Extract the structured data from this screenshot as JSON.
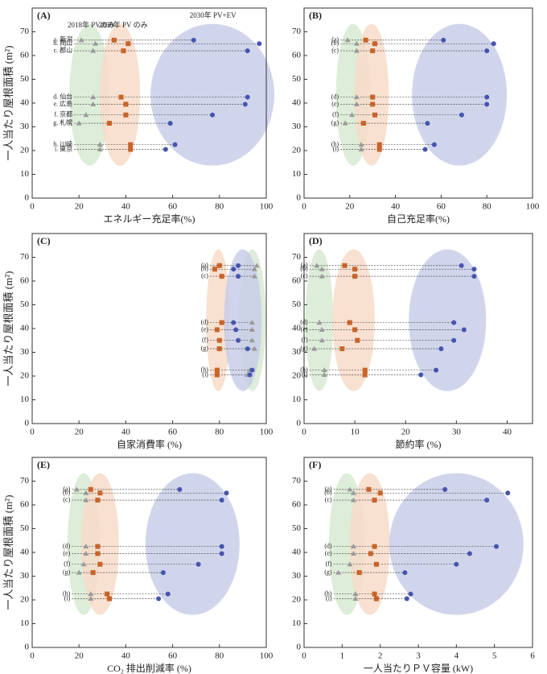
{
  "chart_data": [
    {
      "type": "scatter",
      "panel_label": "(A)",
      "xlabel": "エネルギー充足率(%)",
      "ylabel": "一人当たり屋根面積 (m²)",
      "labels": [
        "a. 新潟",
        "b. 岡山",
        "c. 郡山",
        "d. 仙台",
        "e. 広島",
        "f. 京都",
        "g. 札幌",
        "h. 川崎",
        "i. 東京"
      ],
      "y": [
        66.5,
        65,
        62,
        42.5,
        39.5,
        35,
        31.5,
        22.5,
        20.5
      ],
      "series": [
        {
          "name": "2018年 PVのみ",
          "color": "#9a9a9a",
          "region_color": "#d6e9cf",
          "marker": "triangle",
          "x": [
            21,
            27,
            26,
            26,
            26,
            23,
            20,
            29,
            29
          ]
        },
        {
          "name": "2030年 PV のみ",
          "color": "#c8642a",
          "region_color": "#f6d9c6",
          "marker": "square",
          "x": [
            35,
            41,
            39,
            38,
            40,
            40,
            33,
            42,
            42
          ]
        },
        {
          "name": "2030年 PV+EV",
          "color": "#4655ad",
          "region_color": "#c6cbe7",
          "marker": "circle",
          "x": [
            69,
            97,
            92,
            92,
            91,
            77,
            59,
            61,
            57
          ]
        }
      ],
      "xlim": [
        0,
        100
      ],
      "xticks": [
        0,
        20,
        40,
        60,
        80,
        100
      ],
      "ylim": [
        0,
        80
      ],
      "yticks": [
        0,
        10,
        20,
        30,
        40,
        50,
        60,
        70
      ]
    },
    {
      "type": "scatter",
      "panel_label": "(B)",
      "xlabel": "自己充足率(%)",
      "labels": [
        "(a)",
        "(b)",
        "(c)",
        "(d)",
        "(e)",
        "(f)",
        "(g)",
        "(h)",
        "(i)"
      ],
      "y": [
        66.5,
        65,
        62,
        42.5,
        39.5,
        35,
        31.5,
        22.5,
        20.5
      ],
      "series": [
        {
          "color": "#9a9a9a",
          "region_color": "#d6e9cf",
          "marker": "triangle",
          "x": [
            19,
            23,
            23,
            23,
            23,
            21,
            18,
            25,
            25
          ]
        },
        {
          "color": "#c8642a",
          "region_color": "#f6d9c6",
          "marker": "square",
          "x": [
            27,
            31,
            30,
            30,
            30,
            31,
            26,
            33,
            33
          ]
        },
        {
          "color": "#4655ad",
          "region_color": "#c6cbe7",
          "marker": "circle",
          "x": [
            61,
            83,
            80,
            80,
            80,
            69,
            54,
            57,
            53
          ]
        }
      ],
      "xlim": [
        0,
        100
      ],
      "xticks": [
        0,
        20,
        40,
        60,
        80,
        100
      ],
      "ylim": [
        0,
        80
      ],
      "yticks": [
        0,
        10,
        20,
        30,
        40,
        50,
        60,
        70
      ]
    },
    {
      "type": "scatter",
      "panel_label": "(C)",
      "xlabel": "自家消費率 (%)",
      "ylabel": "一人当たり屋根面積 (m²)",
      "labels": [
        "(a)",
        "(b)",
        "(c)",
        "(d)",
        "(e)",
        "(f)",
        "(g)",
        "(h)",
        "(i)"
      ],
      "y": [
        66.5,
        65,
        62,
        42.5,
        39.5,
        35,
        31.5,
        22.5,
        20.5
      ],
      "series": [
        {
          "color": "#9a9a9a",
          "region_color": "#d6e9cf",
          "marker": "triangle",
          "x": [
            96,
            95,
            95,
            94,
            94,
            94,
            95,
            93,
            92
          ]
        },
        {
          "color": "#c8642a",
          "region_color": "#f6d9c6",
          "marker": "square",
          "x": [
            80,
            78,
            81,
            81,
            79,
            80,
            80,
            79,
            79
          ]
        },
        {
          "color": "#4655ad",
          "region_color": "#c6cbe7",
          "marker": "circle",
          "x": [
            88,
            86,
            88,
            86,
            87,
            88,
            92,
            94,
            93
          ]
        }
      ],
      "xlim": [
        0,
        100
      ],
      "xticks": [
        0,
        20,
        40,
        60,
        80,
        100
      ],
      "ylim": [
        0,
        80
      ],
      "yticks": [
        0,
        10,
        20,
        30,
        40,
        50,
        60,
        70
      ]
    },
    {
      "type": "scatter",
      "panel_label": "(D)",
      "xlabel": "節約率 (%)",
      "labels": [
        "(a)",
        "(b)",
        "(c)",
        "(d)",
        "(e)",
        "(f)",
        "(g)",
        "(h)",
        "(i)"
      ],
      "y": [
        66.5,
        65,
        62,
        42.5,
        39.5,
        35,
        31.5,
        22.5,
        20.5
      ],
      "series": [
        {
          "color": "#9a9a9a",
          "region_color": "#d6e9cf",
          "marker": "triangle",
          "x": [
            2.5,
            3.5,
            3.5,
            3,
            3.5,
            3.5,
            2,
            4,
            4
          ]
        },
        {
          "color": "#c8642a",
          "region_color": "#f6d9c6",
          "marker": "square",
          "x": [
            8,
            10,
            10,
            9,
            10,
            10.5,
            7.5,
            12,
            12
          ]
        },
        {
          "color": "#4655ad",
          "region_color": "#c6cbe7",
          "marker": "circle",
          "x": [
            31,
            33.5,
            33.5,
            29.5,
            31.5,
            29.5,
            27,
            26,
            23
          ]
        }
      ],
      "xlim": [
        0,
        45
      ],
      "xticks": [
        0,
        10,
        20,
        30,
        40
      ],
      "ylim": [
        0,
        80
      ],
      "yticks": [
        0,
        10,
        20,
        30,
        40,
        50,
        60,
        70
      ]
    },
    {
      "type": "scatter",
      "panel_label": "(E)",
      "xlabel": "CO₂ 排出削減率 (%)",
      "ylabel": "一人当たり屋根面積 (m²)",
      "labels": [
        "(a)",
        "(b)",
        "(c)",
        "(d)",
        "(e)",
        "(f)",
        "(g)",
        "(h)",
        "(i)"
      ],
      "y": [
        66.5,
        65,
        62,
        42.5,
        39.5,
        35,
        31.5,
        22.5,
        20.5
      ],
      "series": [
        {
          "color": "#9a9a9a",
          "region_color": "#d6e9cf",
          "marker": "triangle",
          "x": [
            19,
            23,
            23,
            23,
            23,
            22,
            20,
            25,
            25
          ]
        },
        {
          "color": "#c8642a",
          "region_color": "#f6d9c6",
          "marker": "square",
          "x": [
            25,
            29,
            28,
            28,
            28,
            29,
            26,
            32,
            33
          ]
        },
        {
          "color": "#4655ad",
          "region_color": "#c6cbe7",
          "marker": "circle",
          "x": [
            63,
            83,
            81,
            81,
            81,
            71,
            56,
            58,
            54
          ]
        }
      ],
      "xlim": [
        0,
        100
      ],
      "xticks": [
        0,
        20,
        40,
        60,
        80,
        100
      ],
      "ylim": [
        0,
        80
      ],
      "yticks": [
        0,
        10,
        20,
        30,
        40,
        50,
        60,
        70
      ]
    },
    {
      "type": "scatter",
      "panel_label": "(F)",
      "xlabel": "一人当たりＰＶ容量 (kW)",
      "labels": [
        "(a)",
        "(b)",
        "(c)",
        "(d)",
        "(e)",
        "(f)",
        "(g)",
        "(h)",
        "(i)"
      ],
      "y": [
        66.5,
        65,
        62,
        42.5,
        39.5,
        35,
        31.5,
        22.5,
        20.5
      ],
      "series": [
        {
          "color": "#9a9a9a",
          "region_color": "#d6e9cf",
          "marker": "triangle",
          "x": [
            1.2,
            1.3,
            1.3,
            1.3,
            1.3,
            1.2,
            0.9,
            1.35,
            1.35
          ]
        },
        {
          "color": "#c8642a",
          "region_color": "#f6d9c6",
          "marker": "square",
          "x": [
            1.7,
            2.0,
            1.85,
            1.85,
            1.75,
            1.9,
            1.45,
            1.85,
            1.9
          ]
        },
        {
          "color": "#4655ad",
          "region_color": "#c6cbe7",
          "marker": "circle",
          "x": [
            3.7,
            5.35,
            4.8,
            5.05,
            4.35,
            4.0,
            2.65,
            2.8,
            2.7
          ]
        }
      ],
      "xlim": [
        0,
        6
      ],
      "xticks": [
        0,
        1,
        2,
        3,
        4,
        5,
        6
      ],
      "ylim": [
        0,
        80
      ],
      "yticks": [
        0,
        10,
        20,
        30,
        40,
        50,
        60,
        70
      ]
    }
  ]
}
